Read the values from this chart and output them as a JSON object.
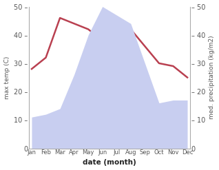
{
  "months": [
    "Jan",
    "Feb",
    "Mar",
    "Apr",
    "May",
    "Jun",
    "Jul",
    "Aug",
    "Sep",
    "Oct",
    "Nov",
    "Dec"
  ],
  "temperature": [
    28,
    32,
    46,
    44,
    42,
    38,
    38,
    42,
    36,
    30,
    29,
    25
  ],
  "precipitation": [
    11,
    12,
    14,
    26,
    40,
    50,
    47,
    44,
    30,
    16,
    17,
    17
  ],
  "temp_color": "#b94050",
  "precip_fill_color": "#c8cef0",
  "ylim_left": [
    0,
    50
  ],
  "ylim_right": [
    0,
    50
  ],
  "yticks": [
    0,
    10,
    20,
    30,
    40,
    50
  ],
  "xlabel": "date (month)",
  "ylabel_left": "max temp (C)",
  "ylabel_right": "med. precipitation (kg/m2)",
  "bg_color": "#ffffff",
  "tick_color": "#555555",
  "spine_color": "#aaaaaa"
}
